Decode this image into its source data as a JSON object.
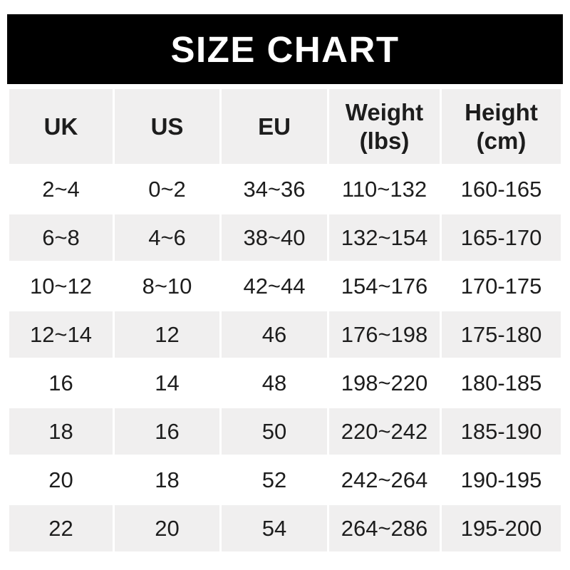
{
  "banner": {
    "title": "SIZE CHART"
  },
  "chart_data": {
    "type": "table",
    "title": "SIZE CHART",
    "columns": [
      [
        "UK"
      ],
      [
        "US"
      ],
      [
        "EU"
      ],
      [
        "Weight",
        "(lbs)"
      ],
      [
        "Height",
        "(cm)"
      ]
    ],
    "rows": [
      [
        "2~4",
        "0~2",
        "34~36",
        "110~132",
        "160-165"
      ],
      [
        "6~8",
        "4~6",
        "38~40",
        "132~154",
        "165-170"
      ],
      [
        "10~12",
        "8~10",
        "42~44",
        "154~176",
        "170-175"
      ],
      [
        "12~14",
        "12",
        "46",
        "176~198",
        "175-180"
      ],
      [
        "16",
        "14",
        "48",
        "198~220",
        "180-185"
      ],
      [
        "18",
        "16",
        "50",
        "220~242",
        "185-190"
      ],
      [
        "20",
        "18",
        "52",
        "242~264",
        "190-195"
      ],
      [
        "22",
        "20",
        "54",
        "264~286",
        "195-200"
      ]
    ]
  },
  "colors": {
    "banner_bg": "#000000",
    "banner_text": "#ffffff",
    "row_alt_bg": "#f0efef",
    "text": "#1d1d1d"
  }
}
